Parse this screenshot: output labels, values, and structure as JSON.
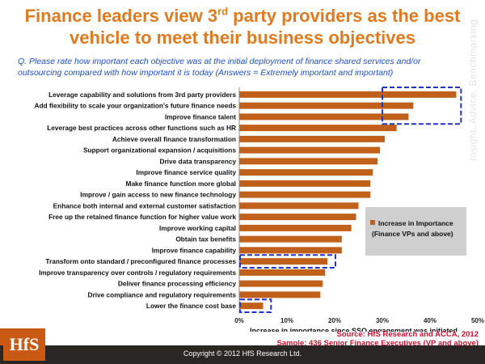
{
  "title": {
    "line1_pre": "Finance leaders view 3",
    "line1_sup": "rd",
    "line1_post": " party providers as the best",
    "line2": "vehicle to meet their business objectives"
  },
  "question": "Q. Please rate how important each objective was at the initial deployment of finance shared services and/or outsourcing compared with how important it is today (Answers = Extremely important and important)",
  "side_tag": "Insight. Advice. Benchmarking.",
  "source": {
    "line1": "Source: HfS Research and ACCA, 2012",
    "line2": "Sample: 436 Senior Finance Executives (VP and above)"
  },
  "footer": "Copyright © 2012 HfS Research Ltd.",
  "logo": "HfS",
  "colors": {
    "bar": "#c0601a",
    "highlight_box": "#2233cc",
    "title": "#e07a1f",
    "source": "#c8102e"
  },
  "chart_data": {
    "type": "bar",
    "orientation": "horizontal",
    "categories": [
      "Leverage capability and solutions from 3rd party providers",
      "Add flexibility to scale your organization's future finance needs",
      "Improve finance talent",
      "Leverage best practices across other functions such as HR",
      "Achieve overall finance transformation",
      "Support organizational expansion / acquisitions",
      "Drive data transparency",
      "Improve finance service quality",
      "Make finance function more global",
      "Improve / gain access to new finance technology",
      "Enhance both internal and external customer satisfaction",
      "Free up  the retained finance function for higher value work",
      "Improve working capital",
      "Obtain tax benefits",
      "Improve finance capability",
      "Transform onto standard / preconfigured finance processes",
      "Improve transparency over controls / regulatory requirements",
      "Deliver finance processing efficiency",
      "Drive compliance and regulatory requirements",
      "Lower the finance cost base"
    ],
    "series": [
      {
        "name": "Increase in Importance (Finance VPs and above)",
        "values": [
          45.5,
          36.5,
          35.5,
          33,
          30.5,
          29.5,
          29,
          28,
          27.5,
          27.5,
          25,
          24.5,
          23.5,
          21.5,
          21.5,
          18.5,
          18,
          17.5,
          17,
          5
        ]
      }
    ],
    "xlabel": "Increase in importance since SSO engagement was initiated",
    "ylabel": "",
    "xlim": [
      0,
      50
    ],
    "xticks": [
      "0%",
      "10%",
      "20%",
      "30%",
      "40%",
      "50%"
    ],
    "grid": false,
    "legend": {
      "position": "right",
      "label": "Increase in Importance (Finance VPs and above)"
    },
    "highlighted_categories": [
      "Leverage capability and solutions from 3rd party providers",
      "Add flexibility to scale your organization's future finance needs",
      "Improve finance talent",
      "Transform onto standard / preconfigured finance processes",
      "Lower the finance cost base"
    ]
  }
}
